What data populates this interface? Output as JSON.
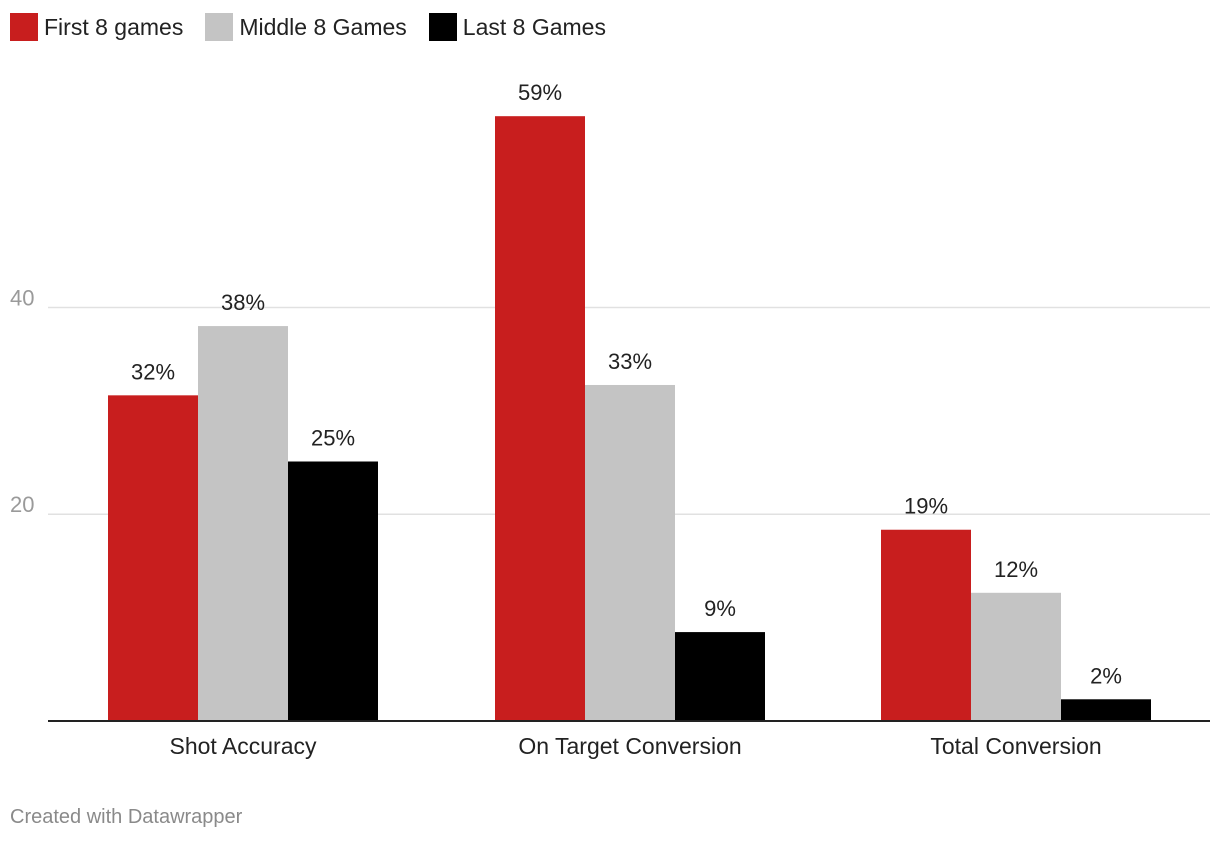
{
  "chart_data": {
    "type": "bar",
    "categories": [
      "Shot Accuracy",
      "On Target Conversion",
      "Total Conversion"
    ],
    "series": [
      {
        "name": "First 8 games",
        "values": [
          31.5,
          58.5,
          18.5
        ],
        "labels": [
          "32%",
          "59%",
          "19%"
        ],
        "color": "#c81e1e"
      },
      {
        "name": "Middle 8 Games",
        "values": [
          38.2,
          32.5,
          12.4
        ],
        "labels": [
          "38%",
          "33%",
          "12%"
        ],
        "color": "#c4c4c4"
      },
      {
        "name": "Last 8 Games",
        "values": [
          25.1,
          8.6,
          2.1
        ],
        "labels": [
          "25%",
          "9%",
          "2%"
        ],
        "color": "#000000"
      }
    ],
    "yticks": [
      20,
      40
    ],
    "ytick_labels": [
      "20",
      "40"
    ],
    "ylim": [
      0,
      62
    ],
    "grid": true,
    "legend": "top-left"
  },
  "footer": {
    "credit": "Created with Datawrapper"
  }
}
